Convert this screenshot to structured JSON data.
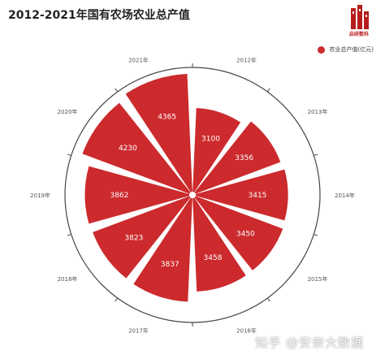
{
  "title": "2012-2021年国有农场农业总产值",
  "logo_text": "启研数科",
  "watermark": "知乎 @安奈大数据",
  "accent_color": "#cc2a2d",
  "chart_data": {
    "type": "bar",
    "polar": true,
    "categories": [
      "2012年",
      "2013年",
      "2014年",
      "2015年",
      "2016年",
      "2017年",
      "2018年",
      "2019年",
      "2020年",
      "2021年"
    ],
    "series": [
      {
        "name": "农业总产值(亿元)",
        "values": [
          3100,
          3356,
          3415,
          3450,
          3458,
          3837,
          3823,
          3862,
          4230,
          4365
        ]
      }
    ],
    "title": "2012-2021年国有农场农业总产值",
    "legend": "top-right",
    "grid": false
  }
}
